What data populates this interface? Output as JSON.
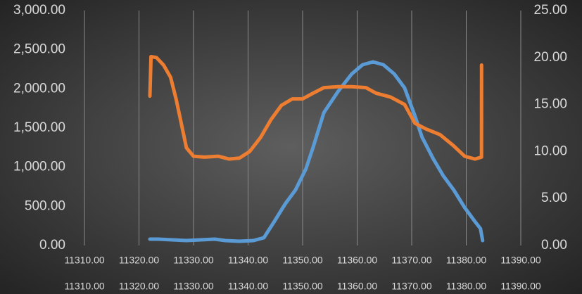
{
  "chart_data": {
    "type": "line",
    "xlim": [
      11310,
      11390
    ],
    "xticks": [
      {
        "value": 11310,
        "label": "11310.00"
      },
      {
        "value": 11320,
        "label": "11320.00"
      },
      {
        "value": 11330,
        "label": "11330.00"
      },
      {
        "value": 11340,
        "label": "11340.00"
      },
      {
        "value": 11350,
        "label": "11350.00"
      },
      {
        "value": 11360,
        "label": "11360.00"
      },
      {
        "value": 11370,
        "label": "11370.00"
      },
      {
        "value": 11380,
        "label": "11380.00"
      },
      {
        "value": 11390,
        "label": "11390.00"
      }
    ],
    "x2lim": [
      11310,
      11390
    ],
    "x2ticks": [
      {
        "value": 11310,
        "label": "11310.00"
      },
      {
        "value": 11320,
        "label": "11320.00"
      },
      {
        "value": 11330,
        "label": "11330.00"
      },
      {
        "value": 11340,
        "label": "11340.00"
      },
      {
        "value": 11350,
        "label": "11350.00"
      },
      {
        "value": 11360,
        "label": "11360.00"
      },
      {
        "value": 11370,
        "label": "11370.00"
      },
      {
        "value": 11380,
        "label": "11380.00"
      },
      {
        "value": 11390,
        "label": "11390.00"
      }
    ],
    "ylim": [
      0,
      3000
    ],
    "yticks": [
      {
        "value": 0,
        "label": "0.00"
      },
      {
        "value": 500,
        "label": "500.00"
      },
      {
        "value": 1000,
        "label": "1,000.00"
      },
      {
        "value": 1500,
        "label": "1,500.00"
      },
      {
        "value": 2000,
        "label": "2,000.00"
      },
      {
        "value": 2500,
        "label": "2,500.00"
      },
      {
        "value": 3000,
        "label": "3,000.00"
      }
    ],
    "y2lim": [
      0,
      25
    ],
    "y2ticks": [
      {
        "value": 0,
        "label": "0.00"
      },
      {
        "value": 5,
        "label": "5.00"
      },
      {
        "value": 10,
        "label": "10.00"
      },
      {
        "value": 15,
        "label": "15.00"
      },
      {
        "value": 20,
        "label": "20.00"
      },
      {
        "value": 25,
        "label": "25.00"
      }
    ],
    "grid": "x",
    "series": [
      {
        "color": "#5b9bd5",
        "x": [
          11322,
          11323.5,
          11326.1,
          11328.7,
          11331.3,
          11333.9,
          11335.8,
          11338.4,
          11341,
          11342.9,
          11344.8,
          11346.8,
          11348.7,
          11350.6,
          11351.9,
          11353.9,
          11356.5,
          11359,
          11361,
          11362.9,
          11364.8,
          11366.8,
          11368.7,
          11370.6,
          11371.9,
          11373.9,
          11375.8,
          11377.7,
          11379.7,
          11381.6,
          11382.6,
          11383
        ],
        "values": [
          81,
          81,
          72,
          63,
          72,
          81,
          63,
          54,
          63,
          99,
          305,
          530,
          710,
          979,
          1248,
          1697,
          1967,
          2191,
          2308,
          2344,
          2308,
          2191,
          2012,
          1653,
          1383,
          1114,
          889,
          710,
          485,
          305,
          216,
          63
        ]
      },
      {
        "color": "#ed7d31",
        "axis": "y2",
        "x": [
          11322,
          11322.2,
          11323.2,
          11324.5,
          11325.8,
          11326.8,
          11327.9,
          11328.7,
          11330,
          11332,
          11334.5,
          11336.5,
          11338.4,
          11340.3,
          11342.3,
          11344.2,
          11346.1,
          11348.1,
          11350,
          11351.9,
          11353.9,
          11356.5,
          11359,
          11361.6,
          11363.5,
          11366.1,
          11368.7,
          11370.6,
          11372.6,
          11375.2,
          11377.7,
          11379.7,
          11381.6,
          11382.8,
          11382.81
        ],
        "values": [
          15.9,
          20.1,
          20.0,
          19.2,
          17.9,
          15.6,
          12.6,
          10.4,
          9.5,
          9.4,
          9.5,
          9.2,
          9.3,
          10.0,
          11.5,
          13.4,
          14.9,
          15.6,
          15.6,
          16.2,
          16.8,
          16.9,
          16.9,
          16.8,
          16.2,
          15.8,
          15.0,
          13.0,
          12.4,
          11.8,
          10.6,
          9.5,
          9.2,
          9.4,
          19.2
        ]
      }
    ]
  }
}
